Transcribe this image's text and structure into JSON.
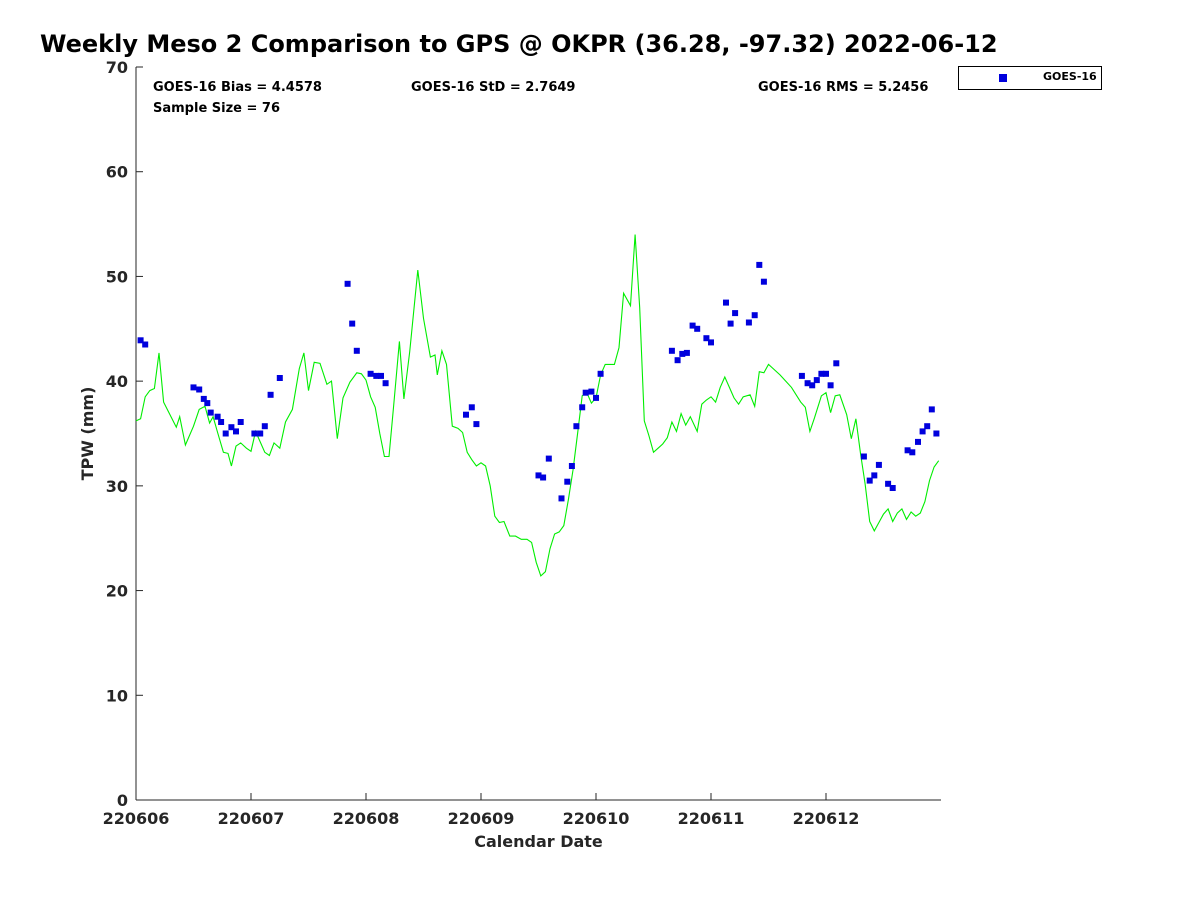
{
  "chart_data": {
    "type": "scatter",
    "title": "Weekly Meso 2 Comparison to GPS @ OKPR (36.28, -97.32) 2022-06-12",
    "xlabel": "Calendar Date",
    "ylabel": "TPW (mm)",
    "xlim": [
      220606,
      220613.0
    ],
    "ylim": [
      0,
      70
    ],
    "x_ticks": [
      220606,
      220607,
      220608,
      220609,
      220610,
      220611,
      220612
    ],
    "x_tick_labels": [
      "220606",
      "220607",
      "220608",
      "220609",
      "220610",
      "220611",
      "220612"
    ],
    "y_ticks": [
      0,
      10,
      20,
      30,
      40,
      50,
      60,
      70
    ],
    "y_tick_labels": [
      "0",
      "10",
      "20",
      "30",
      "40",
      "50",
      "60",
      "70"
    ],
    "stats": {
      "bias": "GOES-16 Bias = 4.4578",
      "std": "GOES-16 StD = 2.7649",
      "rms": "GOES-16 RMS = 5.2456",
      "sample": "Sample Size = 76"
    },
    "legend": {
      "label": "GOES-16",
      "position": "top-right"
    },
    "series": [
      {
        "name": "GOES-16",
        "kind": "scatter",
        "color": "#0000dd",
        "points": [
          [
            220606.04,
            43.9
          ],
          [
            220606.08,
            43.5
          ],
          [
            220606.5,
            39.4
          ],
          [
            220606.55,
            39.2
          ],
          [
            220606.59,
            38.3
          ],
          [
            220606.62,
            37.9
          ],
          [
            220606.65,
            37.0
          ],
          [
            220606.71,
            36.6
          ],
          [
            220606.74,
            36.1
          ],
          [
            220606.78,
            35.0
          ],
          [
            220606.83,
            35.6
          ],
          [
            220606.87,
            35.2
          ],
          [
            220606.91,
            36.1
          ],
          [
            220607.03,
            35.0
          ],
          [
            220607.08,
            35.0
          ],
          [
            220607.12,
            35.7
          ],
          [
            220607.17,
            38.7
          ],
          [
            220607.25,
            40.3
          ],
          [
            220607.84,
            49.3
          ],
          [
            220607.88,
            45.5
          ],
          [
            220607.92,
            42.9
          ],
          [
            220608.04,
            40.7
          ],
          [
            220608.09,
            40.5
          ],
          [
            220608.13,
            40.5
          ],
          [
            220608.17,
            39.8
          ],
          [
            220608.87,
            36.8
          ],
          [
            220608.92,
            37.5
          ],
          [
            220608.96,
            35.9
          ],
          [
            220609.5,
            31.0
          ],
          [
            220609.54,
            30.8
          ],
          [
            220609.59,
            32.6
          ],
          [
            220609.7,
            28.8
          ],
          [
            220609.75,
            30.4
          ],
          [
            220609.79,
            31.9
          ],
          [
            220609.83,
            35.7
          ],
          [
            220609.88,
            37.5
          ],
          [
            220609.91,
            38.9
          ],
          [
            220609.96,
            39.0
          ],
          [
            220610.0,
            38.4
          ],
          [
            220610.04,
            40.7
          ],
          [
            220610.66,
            42.9
          ],
          [
            220610.71,
            42.0
          ],
          [
            220610.75,
            42.6
          ],
          [
            220610.79,
            42.7
          ],
          [
            220610.84,
            45.3
          ],
          [
            220610.88,
            45.0
          ],
          [
            220610.96,
            44.1
          ],
          [
            220611.0,
            43.7
          ],
          [
            220611.13,
            47.5
          ],
          [
            220611.17,
            45.5
          ],
          [
            220611.21,
            46.5
          ],
          [
            220611.33,
            45.6
          ],
          [
            220611.38,
            46.3
          ],
          [
            220611.42,
            51.1
          ],
          [
            220611.46,
            49.5
          ],
          [
            220611.79,
            40.5
          ],
          [
            220611.84,
            39.8
          ],
          [
            220611.88,
            39.6
          ],
          [
            220611.92,
            40.1
          ],
          [
            220611.96,
            40.7
          ],
          [
            220612.0,
            40.7
          ],
          [
            220612.04,
            39.6
          ],
          [
            220612.09,
            41.7
          ],
          [
            220612.33,
            32.8
          ],
          [
            220612.38,
            30.5
          ],
          [
            220612.42,
            31.0
          ],
          [
            220612.46,
            32.0
          ],
          [
            220612.54,
            30.2
          ],
          [
            220612.58,
            29.8
          ],
          [
            220612.71,
            33.4
          ],
          [
            220612.75,
            33.2
          ],
          [
            220612.8,
            34.2
          ],
          [
            220612.84,
            35.2
          ],
          [
            220612.88,
            35.7
          ],
          [
            220612.92,
            37.3
          ],
          [
            220612.96,
            35.0
          ]
        ]
      },
      {
        "name": "GPS",
        "kind": "line",
        "color": "#00ee00",
        "points": [
          [
            220606.0,
            36.2
          ],
          [
            220606.04,
            36.4
          ],
          [
            220606.08,
            38.5
          ],
          [
            220606.12,
            39.1
          ],
          [
            220606.16,
            39.3
          ],
          [
            220606.2,
            42.7
          ],
          [
            220606.24,
            38.0
          ],
          [
            220606.3,
            36.7
          ],
          [
            220606.35,
            35.6
          ],
          [
            220606.38,
            36.6
          ],
          [
            220606.43,
            33.9
          ],
          [
            220606.5,
            35.7
          ],
          [
            220606.55,
            37.3
          ],
          [
            220606.6,
            37.6
          ],
          [
            220606.64,
            36.0
          ],
          [
            220606.67,
            36.6
          ],
          [
            220606.71,
            35.1
          ],
          [
            220606.76,
            33.2
          ],
          [
            220606.8,
            33.1
          ],
          [
            220606.83,
            31.9
          ],
          [
            220606.87,
            33.8
          ],
          [
            220606.91,
            34.1
          ],
          [
            220606.96,
            33.6
          ],
          [
            220607.0,
            33.3
          ],
          [
            220607.04,
            35.2
          ],
          [
            220607.08,
            34.2
          ],
          [
            220607.12,
            33.2
          ],
          [
            220607.16,
            32.9
          ],
          [
            220607.2,
            34.1
          ],
          [
            220607.25,
            33.6
          ],
          [
            220607.3,
            36.1
          ],
          [
            220607.36,
            37.3
          ],
          [
            220607.42,
            41.2
          ],
          [
            220607.46,
            42.7
          ],
          [
            220607.5,
            39.1
          ],
          [
            220607.55,
            41.8
          ],
          [
            220607.6,
            41.7
          ],
          [
            220607.66,
            39.7
          ],
          [
            220607.7,
            40.0
          ],
          [
            220607.75,
            34.5
          ],
          [
            220607.8,
            38.4
          ],
          [
            220607.86,
            39.9
          ],
          [
            220607.92,
            40.8
          ],
          [
            220607.96,
            40.7
          ],
          [
            220608.0,
            40.1
          ],
          [
            220608.04,
            38.5
          ],
          [
            220608.08,
            37.5
          ],
          [
            220608.12,
            35.0
          ],
          [
            220608.16,
            32.8
          ],
          [
            220608.2,
            32.8
          ],
          [
            220608.24,
            37.6
          ],
          [
            220608.29,
            43.8
          ],
          [
            220608.33,
            38.3
          ],
          [
            220608.38,
            42.8
          ],
          [
            220608.45,
            50.6
          ],
          [
            220608.5,
            46.0
          ],
          [
            220608.56,
            42.3
          ],
          [
            220608.6,
            42.5
          ],
          [
            220608.62,
            40.6
          ],
          [
            220608.66,
            42.9
          ],
          [
            220608.7,
            41.6
          ],
          [
            220608.75,
            35.7
          ],
          [
            220608.8,
            35.5
          ],
          [
            220608.84,
            35.1
          ],
          [
            220608.88,
            33.2
          ],
          [
            220608.92,
            32.5
          ],
          [
            220608.96,
            31.9
          ],
          [
            220609.0,
            32.2
          ],
          [
            220609.04,
            31.9
          ],
          [
            220609.08,
            30.0
          ],
          [
            220609.12,
            27.1
          ],
          [
            220609.16,
            26.5
          ],
          [
            220609.2,
            26.6
          ],
          [
            220609.25,
            25.2
          ],
          [
            220609.3,
            25.2
          ],
          [
            220609.35,
            24.9
          ],
          [
            220609.4,
            24.9
          ],
          [
            220609.44,
            24.6
          ],
          [
            220609.48,
            22.7
          ],
          [
            220609.52,
            21.4
          ],
          [
            220609.56,
            21.8
          ],
          [
            220609.6,
            24.0
          ],
          [
            220609.64,
            25.4
          ],
          [
            220609.68,
            25.6
          ],
          [
            220609.72,
            26.2
          ],
          [
            220609.76,
            28.7
          ],
          [
            220609.8,
            31.5
          ],
          [
            220609.84,
            35.0
          ],
          [
            220609.88,
            38.6
          ],
          [
            220609.92,
            38.9
          ],
          [
            220609.96,
            37.9
          ],
          [
            220610.0,
            38.4
          ],
          [
            220610.04,
            40.6
          ],
          [
            220610.08,
            41.6
          ],
          [
            220610.12,
            41.6
          ],
          [
            220610.16,
            41.6
          ],
          [
            220610.2,
            43.2
          ],
          [
            220610.24,
            48.4
          ],
          [
            220610.3,
            47.2
          ],
          [
            220610.34,
            54.0
          ],
          [
            220610.38,
            47.0
          ],
          [
            220610.42,
            36.2
          ],
          [
            220610.46,
            34.8
          ],
          [
            220610.5,
            33.2
          ],
          [
            220610.54,
            33.6
          ],
          [
            220610.58,
            34.0
          ],
          [
            220610.62,
            34.6
          ],
          [
            220610.66,
            36.1
          ],
          [
            220610.7,
            35.2
          ],
          [
            220610.74,
            36.9
          ],
          [
            220610.78,
            35.8
          ],
          [
            220610.82,
            36.6
          ],
          [
            220610.88,
            35.2
          ],
          [
            220610.92,
            37.8
          ],
          [
            220610.96,
            38.2
          ],
          [
            220611.0,
            38.5
          ],
          [
            220611.04,
            38.0
          ],
          [
            220611.08,
            39.4
          ],
          [
            220611.12,
            40.4
          ],
          [
            220611.16,
            39.4
          ],
          [
            220611.2,
            38.4
          ],
          [
            220611.24,
            37.8
          ],
          [
            220611.28,
            38.5
          ],
          [
            220611.34,
            38.7
          ],
          [
            220611.38,
            37.6
          ],
          [
            220611.42,
            40.9
          ],
          [
            220611.46,
            40.8
          ],
          [
            220611.5,
            41.6
          ],
          [
            220611.6,
            40.6
          ],
          [
            220611.7,
            39.4
          ],
          [
            220611.78,
            38.0
          ],
          [
            220611.82,
            37.5
          ],
          [
            220611.86,
            35.2
          ],
          [
            220611.9,
            36.5
          ],
          [
            220611.96,
            38.6
          ],
          [
            220612.0,
            38.9
          ],
          [
            220612.04,
            37.0
          ],
          [
            220612.08,
            38.6
          ],
          [
            220612.12,
            38.7
          ],
          [
            220612.18,
            36.8
          ],
          [
            220612.22,
            34.5
          ],
          [
            220612.26,
            36.4
          ],
          [
            220612.3,
            33.1
          ],
          [
            220612.34,
            30.2
          ],
          [
            220612.38,
            26.6
          ],
          [
            220612.42,
            25.7
          ],
          [
            220612.46,
            26.5
          ],
          [
            220612.5,
            27.3
          ],
          [
            220612.54,
            27.8
          ],
          [
            220612.58,
            26.6
          ],
          [
            220612.62,
            27.4
          ],
          [
            220612.66,
            27.8
          ],
          [
            220612.7,
            26.8
          ],
          [
            220612.74,
            27.5
          ],
          [
            220612.78,
            27.1
          ],
          [
            220612.82,
            27.4
          ],
          [
            220612.86,
            28.5
          ],
          [
            220612.9,
            30.5
          ],
          [
            220612.94,
            31.8
          ],
          [
            220612.98,
            32.4
          ]
        ]
      }
    ]
  }
}
